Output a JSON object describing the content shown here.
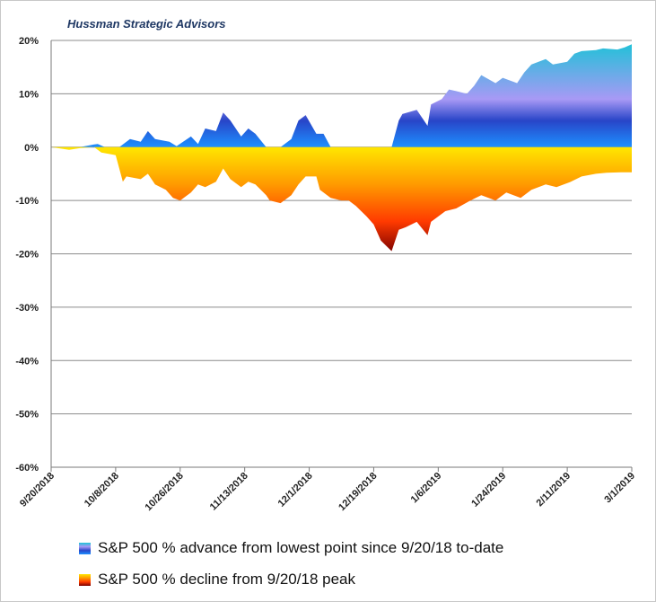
{
  "chart_data": {
    "type": "area",
    "watermark": "Hussman Strategic Advisors",
    "x_ticks": [
      "9/20/2018",
      "10/8/2018",
      "10/26/2018",
      "11/13/2018",
      "12/1/2018",
      "12/19/2018",
      "1/6/2019",
      "1/24/2019",
      "2/11/2019",
      "3/1/2019"
    ],
    "y_ticks": [
      "20%",
      "10%",
      "0%",
      "-10%",
      "-20%",
      "-30%",
      "-40%",
      "-50%",
      "-60%"
    ],
    "ylim": [
      -60,
      20
    ],
    "grid": true,
    "legend_position": "bottom",
    "series": [
      {
        "name": "S&P 500 % advance from lowest point since 9/20/18 to-date",
        "colors": [
          "#1e90ff",
          "#2845c8",
          "#a899f5",
          "#19c4d6"
        ],
        "x": [
          "9/20/2018",
          "9/24/2018",
          "9/28/2018",
          "10/2/2018",
          "10/3/2018",
          "10/5/2018",
          "10/9/2018",
          "10/12/2018",
          "10/15/2018",
          "10/17/2018",
          "10/19/2018",
          "10/23/2018",
          "10/25/2018",
          "10/29/2018",
          "10/31/2018",
          "11/2/2018",
          "11/5/2018",
          "11/7/2018",
          "11/9/2018",
          "11/12/2018",
          "11/14/2018",
          "11/16/2018",
          "11/19/2018",
          "11/21/2018",
          "11/23/2018",
          "11/26/2018",
          "11/28/2018",
          "11/30/2018",
          "12/3/2018",
          "12/5/2018",
          "12/7/2018",
          "12/10/2018",
          "12/12/2018",
          "12/14/2018",
          "12/17/2018",
          "12/24/2018",
          "12/26/2018",
          "12/27/2018",
          "12/31/2018",
          "1/3/2019",
          "1/4/2019",
          "1/7/2019",
          "1/9/2019",
          "1/11/2019",
          "1/14/2019",
          "1/16/2019",
          "1/18/2019",
          "1/22/2019",
          "1/24/2019",
          "1/28/2019",
          "1/30/2019",
          "2/1/2019",
          "2/5/2019",
          "2/7/2019",
          "2/11/2019",
          "2/13/2019",
          "2/15/2019",
          "2/19/2019",
          "2/21/2019",
          "2/25/2019",
          "2/27/2019",
          "3/1/2019"
        ],
        "values": [
          0,
          0,
          0,
          0.5,
          0.6,
          0,
          0,
          1.5,
          1.0,
          3.0,
          1.5,
          1.0,
          0.2,
          2.0,
          0.6,
          3.5,
          3.0,
          6.5,
          5.0,
          2.0,
          3.5,
          2.5,
          0,
          0,
          0,
          1.5,
          5.0,
          6.0,
          2.5,
          2.5,
          0,
          0,
          0,
          0,
          0,
          0,
          5.0,
          6.2,
          7.0,
          4.0,
          8.0,
          9.0,
          10.8,
          10.5,
          10.0,
          11.5,
          13.5,
          12.0,
          13.0,
          12.0,
          14.0,
          15.5,
          16.5,
          15.5,
          16.0,
          17.5,
          18.0,
          18.2,
          18.5,
          18.3,
          18.7,
          19.3
        ]
      },
      {
        "name": "S&P 500 % decline from 9/20/18 peak",
        "colors": [
          "#ffe600",
          "#ff9a00",
          "#ff3a00",
          "#7a0000"
        ],
        "x": [
          "9/20/2018",
          "9/25/2018",
          "9/28/2018",
          "10/2/2018",
          "10/4/2018",
          "10/8/2018",
          "10/10/2018",
          "10/11/2018",
          "10/15/2018",
          "10/17/2018",
          "10/19/2018",
          "10/22/2018",
          "10/24/2018",
          "10/26/2018",
          "10/29/2018",
          "10/31/2018",
          "11/2/2018",
          "11/5/2018",
          "11/7/2018",
          "11/9/2018",
          "11/12/2018",
          "11/14/2018",
          "11/16/2018",
          "11/19/2018",
          "11/20/2018",
          "11/23/2018",
          "11/26/2018",
          "11/28/2018",
          "11/30/2018",
          "12/3/2018",
          "12/4/2018",
          "12/7/2018",
          "12/10/2018",
          "12/12/2018",
          "12/14/2018",
          "12/17/2018",
          "12/19/2018",
          "12/21/2018",
          "12/24/2018",
          "12/26/2018",
          "12/28/2018",
          "12/31/2018",
          "1/3/2019",
          "1/4/2019",
          "1/8/2019",
          "1/11/2019",
          "1/15/2019",
          "1/18/2019",
          "1/22/2019",
          "1/25/2019",
          "1/29/2019",
          "2/1/2019",
          "2/5/2019",
          "2/8/2019",
          "2/12/2019",
          "2/15/2019",
          "2/19/2019",
          "2/22/2019",
          "2/26/2019",
          "3/1/2019"
        ],
        "values": [
          0,
          -0.5,
          -0.2,
          0,
          -1.0,
          -1.5,
          -6.5,
          -5.5,
          -6.0,
          -5.0,
          -7.0,
          -8.0,
          -9.5,
          -10.0,
          -8.5,
          -7.0,
          -7.5,
          -6.5,
          -4.0,
          -6.0,
          -7.5,
          -6.5,
          -7.0,
          -9.0,
          -10.0,
          -10.5,
          -9.0,
          -7.0,
          -5.5,
          -5.5,
          -8.0,
          -9.5,
          -10.0,
          -10.0,
          -11.0,
          -13.0,
          -14.5,
          -17.5,
          -19.5,
          -15.5,
          -15.0,
          -14.0,
          -16.5,
          -14.0,
          -12.0,
          -11.5,
          -10.0,
          -9.0,
          -10.0,
          -8.5,
          -9.5,
          -8.0,
          -7.0,
          -7.5,
          -6.5,
          -5.5,
          -5.0,
          -4.8,
          -4.7,
          -4.7
        ]
      }
    ]
  }
}
